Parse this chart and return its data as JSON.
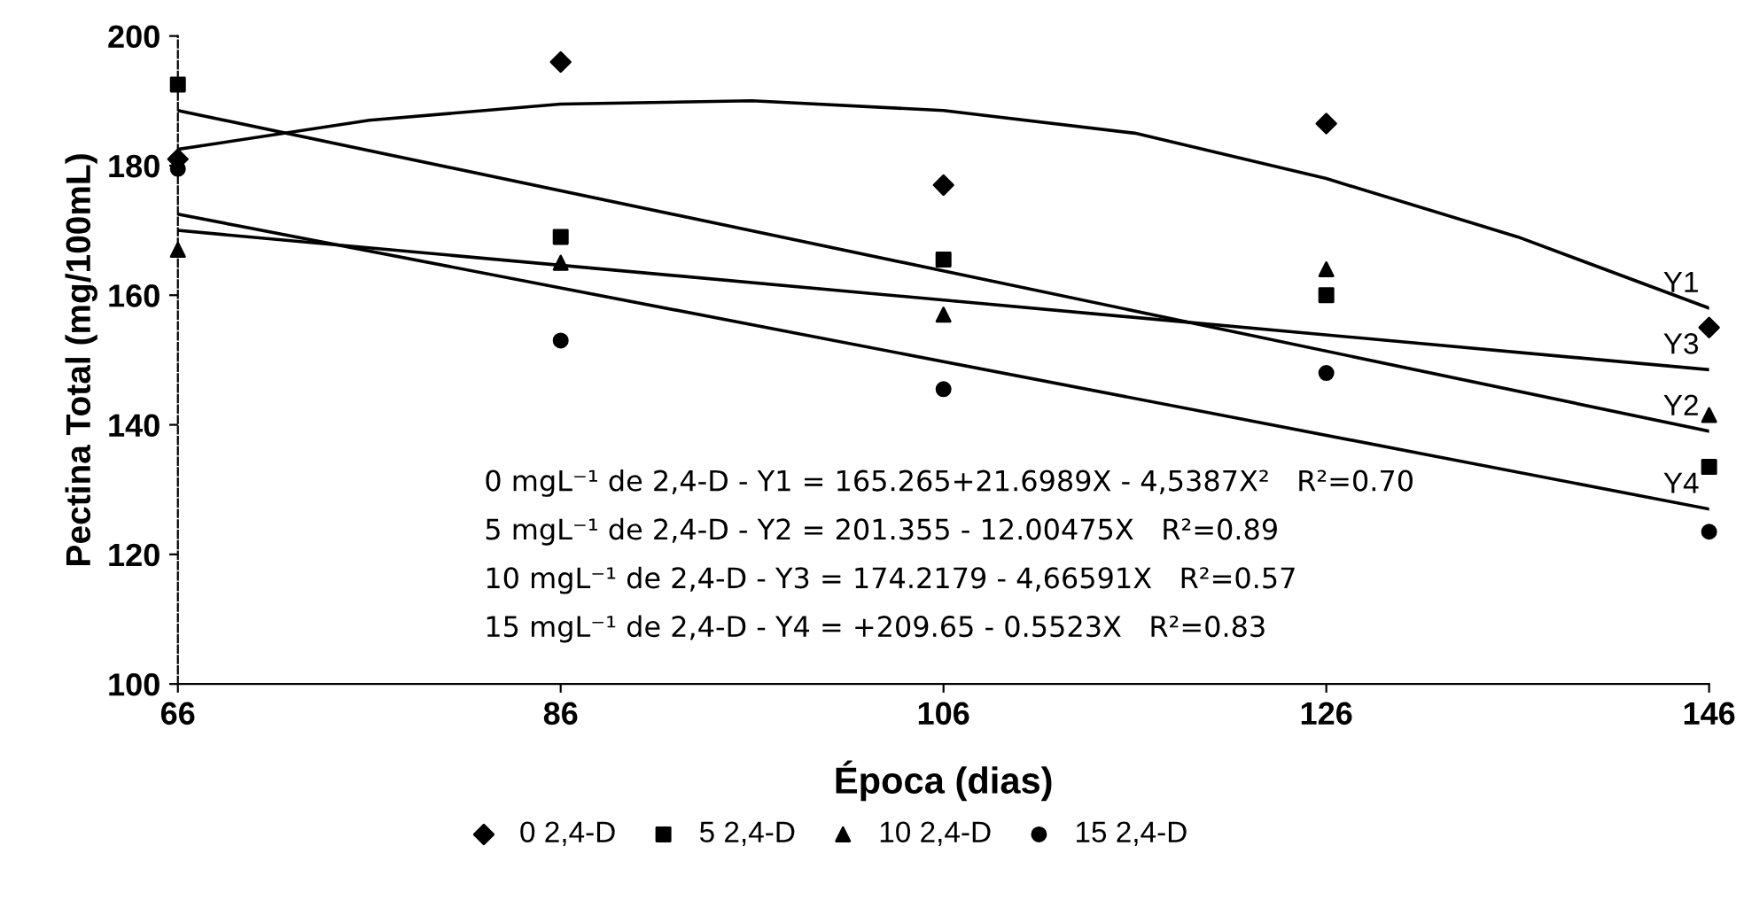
{
  "chart_data": {
    "type": "scatter",
    "xlabel": "Época (dias)",
    "ylabel": "Pectina Total (mg/100mL)",
    "xlim": [
      66,
      146
    ],
    "xticks": [
      66,
      86,
      106,
      126,
      146
    ],
    "ylim": [
      100,
      200
    ],
    "yticks": [
      100,
      120,
      140,
      160,
      180,
      200
    ],
    "grid": false,
    "legend": "bottom",
    "series": [
      {
        "name": "0 2,4-D",
        "marker": "diamond",
        "color": "#000000",
        "x": [
          66,
          86,
          106,
          126,
          146
        ],
        "values": [
          181,
          196,
          177,
          186.5,
          155
        ]
      },
      {
        "name": "5 2,4-D",
        "marker": "square",
        "color": "#000000",
        "x": [
          66,
          86,
          106,
          126,
          146
        ],
        "values": [
          192.5,
          169,
          165.5,
          160,
          133.5
        ]
      },
      {
        "name": "10 2,4-D",
        "marker": "triangle",
        "color": "#000000",
        "x": [
          66,
          86,
          106,
          126,
          146
        ],
        "values": [
          167,
          165,
          157,
          164,
          141.5
        ]
      },
      {
        "name": "15 2,4-D",
        "marker": "circle",
        "color": "#000000",
        "x": [
          66,
          86,
          106,
          126,
          146
        ],
        "values": [
          179.5,
          153,
          145.5,
          148,
          123.5
        ]
      },
      {
        "name": "Y1",
        "type": "line",
        "marker": "none",
        "color": "#000000",
        "x": [
          66,
          76,
          86,
          96,
          106,
          116,
          126,
          136,
          146
        ],
        "values": [
          182.5,
          187,
          189.5,
          190,
          188.5,
          185,
          178,
          169,
          158
        ]
      },
      {
        "name": "Y2",
        "type": "line",
        "marker": "none",
        "color": "#000000",
        "x": [
          66,
          146
        ],
        "values": [
          188.5,
          139
        ]
      },
      {
        "name": "Y3",
        "type": "line",
        "marker": "none",
        "color": "#000000",
        "x": [
          66,
          146
        ],
        "values": [
          170,
          148.5
        ]
      },
      {
        "name": "Y4",
        "type": "line",
        "marker": "none",
        "color": "#000000",
        "x": [
          66,
          146
        ],
        "values": [
          172.5,
          127
        ]
      }
    ],
    "annotations": [
      "0 mgL⁻¹ de 2,4-D - Y1 = 165.265+21.6989X - 4,5387X²   R²=0.70",
      "5 mgL⁻¹ de 2,4-D - Y2 = 201.355 - 12.00475X   R²=0.89",
      "10 mgL⁻¹ de 2,4-D - Y3 = 174.2179 - 4,66591X   R²=0.57",
      "15 mgL⁻¹ de 2,4-D - Y4 = +209.65 - 0.5523X   R²=0.83"
    ]
  }
}
